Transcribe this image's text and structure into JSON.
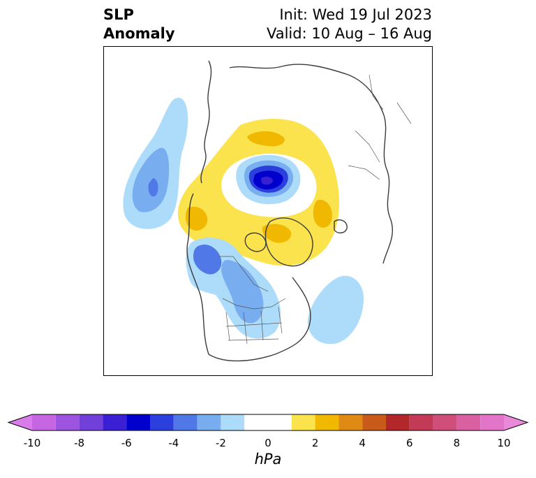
{
  "title": {
    "left_line1": "SLP",
    "left_line2": "Anomaly",
    "right_line1": "Init: Wed 19 Jul 2023",
    "right_line2": "Valid: 10 Aug – 16 Aug"
  },
  "colorbar": {
    "unit": "hPa",
    "levels": [
      -10,
      -9,
      -8,
      -7,
      -6,
      -5,
      -4,
      -3,
      -2,
      -1,
      1,
      2,
      3,
      4,
      5,
      6,
      7,
      8,
      9,
      10
    ],
    "colors": {
      "lt_neg10": "#d97be8",
      "n10_n9": "#c766e3",
      "n9_n8": "#9d55df",
      "n8_n7": "#7140d9",
      "n7_n6": "#3b1fd3",
      "n6_n5": "#0000cd",
      "n5_n4": "#2a3fdb",
      "n4_n3": "#5078e6",
      "n3_n2": "#78adf0",
      "n2_n1": "#addcfa",
      "n1_p1": "#ffffff",
      "p1_p2": "#fbe34e",
      "p2_p3": "#f0b800",
      "p3_p4": "#df8a14",
      "p4_p5": "#c85a1a",
      "p5_p6": "#b2282a",
      "p6_p7": "#c23a55",
      "p7_p8": "#cf4e7a",
      "p8_p9": "#d961a1",
      "p9_p10": "#e275c8",
      "gt_p10": "#e88ad9"
    },
    "tick_labels": [
      {
        "value": -10,
        "label": "-10"
      },
      {
        "value": -8,
        "label": "-8"
      },
      {
        "value": -6,
        "label": "-6"
      },
      {
        "value": -4,
        "label": "-4"
      },
      {
        "value": -2,
        "label": "-2"
      },
      {
        "value": 0,
        "label": "0"
      },
      {
        "value": 2,
        "label": "2"
      },
      {
        "value": 4,
        "label": "4"
      },
      {
        "value": 6,
        "label": "6"
      },
      {
        "value": 8,
        "label": "8"
      },
      {
        "value": 10,
        "label": "10"
      }
    ]
  }
}
